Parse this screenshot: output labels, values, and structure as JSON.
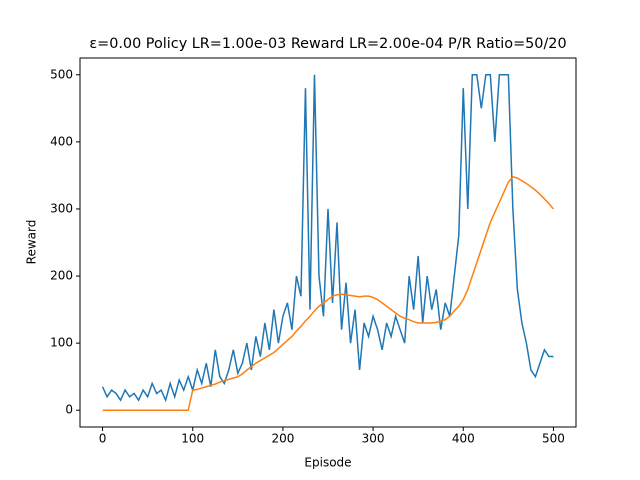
{
  "chart_data": {
    "type": "line",
    "title": "ε=0.00  Policy LR=1.00e-03  Reward LR=2.00e-04  P/R Ratio=50/20",
    "xlabel": "Episode",
    "ylabel": "Reward",
    "x": [
      0,
      5,
      10,
      15,
      20,
      25,
      30,
      35,
      40,
      45,
      50,
      55,
      60,
      65,
      70,
      75,
      80,
      85,
      90,
      95,
      100,
      105,
      110,
      115,
      120,
      125,
      130,
      135,
      140,
      145,
      150,
      155,
      160,
      165,
      170,
      175,
      180,
      185,
      190,
      195,
      200,
      205,
      210,
      215,
      220,
      225,
      230,
      235,
      240,
      245,
      250,
      255,
      260,
      265,
      270,
      275,
      280,
      285,
      290,
      295,
      300,
      305,
      310,
      315,
      320,
      325,
      330,
      335,
      340,
      345,
      350,
      355,
      360,
      365,
      370,
      375,
      380,
      385,
      390,
      395,
      400,
      405,
      410,
      415,
      420,
      425,
      430,
      435,
      440,
      445,
      450,
      455,
      460,
      465,
      470,
      475,
      480,
      485,
      490,
      495,
      500
    ],
    "series": [
      {
        "color": "#1f77b4",
        "values": [
          35,
          20,
          30,
          25,
          15,
          30,
          20,
          25,
          15,
          30,
          20,
          40,
          25,
          30,
          15,
          40,
          20,
          45,
          30,
          50,
          30,
          60,
          40,
          70,
          35,
          90,
          50,
          40,
          60,
          90,
          55,
          70,
          100,
          60,
          110,
          80,
          130,
          90,
          150,
          100,
          140,
          160,
          120,
          200,
          170,
          480,
          150,
          500,
          200,
          140,
          300,
          160,
          280,
          120,
          190,
          100,
          150,
          60,
          130,
          110,
          140,
          120,
          90,
          130,
          110,
          140,
          120,
          100,
          200,
          150,
          230,
          130,
          200,
          150,
          180,
          120,
          160,
          140,
          200,
          260,
          480,
          300,
          500,
          500,
          450,
          500,
          500,
          400,
          500,
          500,
          500,
          300,
          180,
          130,
          100,
          60,
          50,
          70,
          90,
          80,
          80
        ]
      },
      {
        "color": "#ff7f0e",
        "values": [
          0,
          0,
          0,
          0,
          0,
          0,
          0,
          0,
          0,
          0,
          0,
          0,
          0,
          0,
          0,
          0,
          0,
          0,
          0,
          0,
          30,
          31,
          33,
          35,
          37,
          39,
          42,
          44,
          46,
          48,
          50,
          54,
          60,
          65,
          70,
          74,
          78,
          82,
          86,
          92,
          98,
          104,
          110,
          118,
          125,
          133,
          140,
          148,
          155,
          160,
          165,
          170,
          172,
          173,
          172,
          171,
          170,
          169,
          170,
          170,
          168,
          165,
          160,
          155,
          150,
          145,
          140,
          137,
          135,
          132,
          130,
          130,
          130,
          130,
          131,
          133,
          135,
          140,
          148,
          155,
          165,
          180,
          200,
          220,
          240,
          260,
          280,
          295,
          310,
          325,
          340,
          348,
          346,
          342,
          338,
          333,
          328,
          322,
          315,
          308,
          300
        ]
      }
    ],
    "xlim": [
      -25,
      525
    ],
    "ylim": [
      -25,
      525
    ],
    "xticks": [
      0,
      100,
      200,
      300,
      400,
      500
    ],
    "yticks": [
      0,
      100,
      200,
      300,
      400,
      500
    ]
  }
}
